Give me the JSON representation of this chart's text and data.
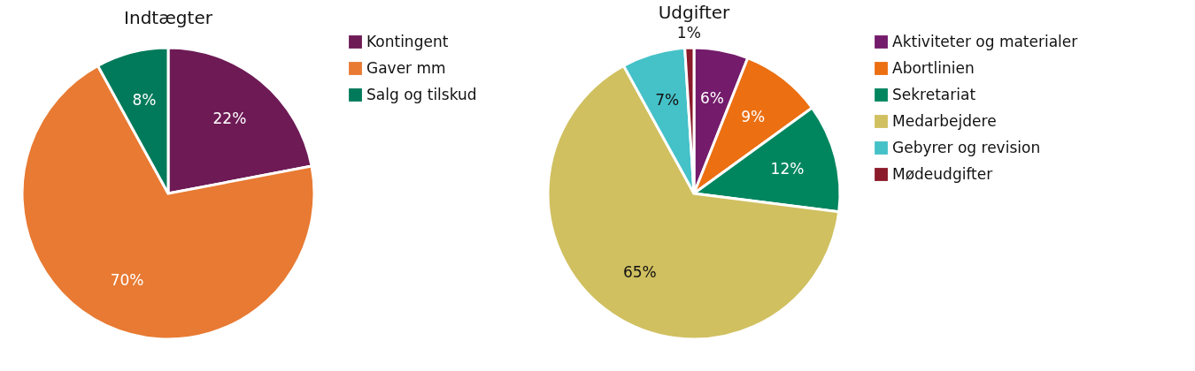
{
  "chart_data": [
    {
      "type": "pie",
      "title": "Indtægter",
      "categories": [
        "Kontingent",
        "Gaver mm",
        "Salg og tilskud"
      ],
      "values": [
        22,
        70,
        8
      ],
      "colors": [
        "#6d1a55",
        "#e87a33",
        "#007a5a"
      ],
      "value_labels": [
        "22%",
        "70%",
        "8%"
      ],
      "legend": "right"
    },
    {
      "type": "pie",
      "title": "Udgifter",
      "categories": [
        "Aktiviteter og materialer",
        "Abortlinien",
        "Sekretariat",
        "Medarbejdere",
        "Gebyrer og revision",
        "Mødeudgifter"
      ],
      "values": [
        6,
        9,
        12,
        65,
        7,
        1
      ],
      "colors": [
        "#741b6b",
        "#ec6f12",
        "#00865f",
        "#d0c060",
        "#45c1c8",
        "#8b1a2a"
      ],
      "value_labels": [
        "6%",
        "9%",
        "12%",
        "65%",
        "7%",
        "1%"
      ],
      "legend": "right"
    }
  ]
}
